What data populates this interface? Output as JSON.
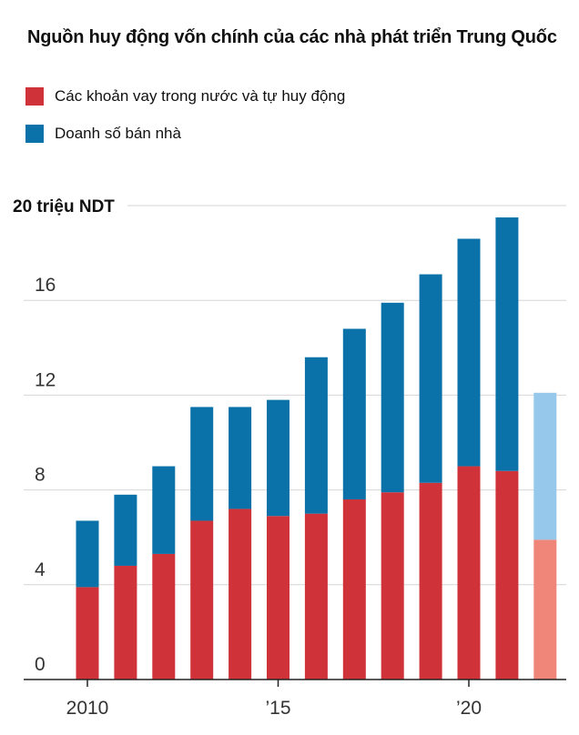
{
  "colors": {
    "domestic": "#d0323a",
    "sales": "#0a72a8",
    "domestic_forecast": "#f0857a",
    "sales_forecast": "#95c8ea",
    "grid": "#d6d6d6",
    "axis": "#222222"
  },
  "chart_data": {
    "type": "bar",
    "stacked": true,
    "title": "Nguồn huy động vốn chính của các nhà phát triển Trung Quốc",
    "ylabel_top": "20 triệu NDT",
    "ylim": [
      0,
      20
    ],
    "yticks": [
      0,
      4,
      8,
      12,
      16
    ],
    "xticks": [
      {
        "year": 2010,
        "label": "2010"
      },
      {
        "year": 2015,
        "label": "’15"
      },
      {
        "year": 2020,
        "label": "’20"
      }
    ],
    "years": [
      2010,
      2011,
      2012,
      2013,
      2014,
      2015,
      2016,
      2017,
      2018,
      2019,
      2020,
      2021,
      2022
    ],
    "series": [
      {
        "name": "Các khoản vay trong nước và tự huy động",
        "color_key": "domestic",
        "values": [
          3.9,
          4.8,
          5.3,
          6.7,
          7.2,
          6.9,
          7.0,
          7.6,
          7.9,
          8.3,
          9.0,
          8.8,
          5.9
        ]
      },
      {
        "name": "Doanh số bán nhà",
        "color_key": "sales",
        "values": [
          2.8,
          3.0,
          3.7,
          4.8,
          4.3,
          4.9,
          6.6,
          7.2,
          8.0,
          8.8,
          9.6,
          10.7,
          6.2
        ]
      }
    ],
    "forecast_years": [
      2022
    ],
    "grid": true,
    "legend_position": "top-left"
  }
}
